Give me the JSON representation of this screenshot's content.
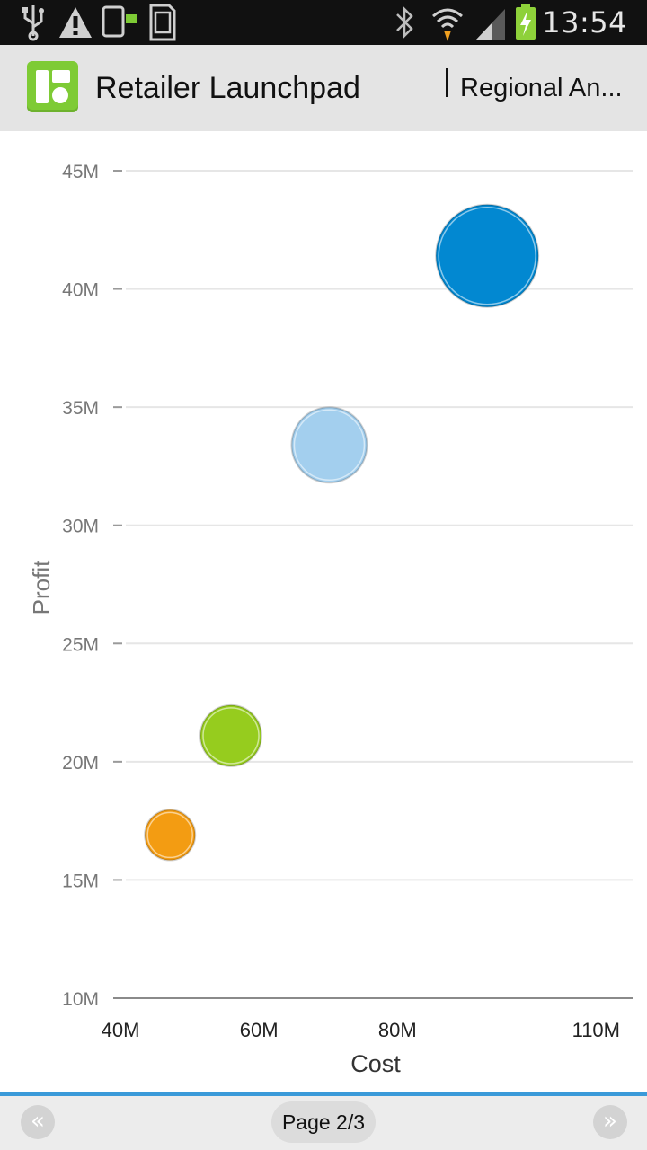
{
  "status_bar": {
    "time": "13:54",
    "icons": [
      "usb-icon",
      "warning-icon",
      "transfer-icon",
      "sd-card-icon",
      "bluetooth-icon",
      "wifi-icon",
      "signal-icon",
      "battery-charging-icon"
    ]
  },
  "header": {
    "back_glyph": "〈",
    "app_title": "Retailer Launchpad",
    "view_title": "Regional An..."
  },
  "footer": {
    "prev_glyph": "«",
    "next_glyph": "»",
    "page_indicator": "Page 2/3"
  },
  "colors": {
    "status_bg": "#111111",
    "header_bg": "#e4e4e4",
    "accent": "#3a9ad9",
    "logo_green": "#7ecb35"
  },
  "chart_data": {
    "type": "scatter",
    "xlabel": "Cost",
    "ylabel": "Profit",
    "xlim": [
      40,
      115
    ],
    "ylim": [
      10,
      45
    ],
    "x_ticks": [
      {
        "value": 40,
        "label": "40M"
      },
      {
        "value": 60,
        "label": "60M"
      },
      {
        "value": 80,
        "label": "80M"
      },
      {
        "value": 110,
        "label": "110M"
      }
    ],
    "y_ticks": [
      {
        "value": 10,
        "label": "10M"
      },
      {
        "value": 15,
        "label": "15M"
      },
      {
        "value": 20,
        "label": "20M"
      },
      {
        "value": 25,
        "label": "25M"
      },
      {
        "value": 30,
        "label": "30M"
      },
      {
        "value": 35,
        "label": "35M"
      },
      {
        "value": 40,
        "label": "40M"
      },
      {
        "value": 45,
        "label": "45M"
      }
    ],
    "grid": true,
    "points": [
      {
        "x": 48.2,
        "y": 16.9,
        "size": 28,
        "color": "#f39c12"
      },
      {
        "x": 57.0,
        "y": 21.1,
        "size": 34,
        "color": "#96cc1e"
      },
      {
        "x": 71.2,
        "y": 33.4,
        "size": 42,
        "color": "#a3cfee"
      },
      {
        "x": 94.0,
        "y": 41.4,
        "size": 57,
        "color": "#0288d1"
      }
    ]
  }
}
